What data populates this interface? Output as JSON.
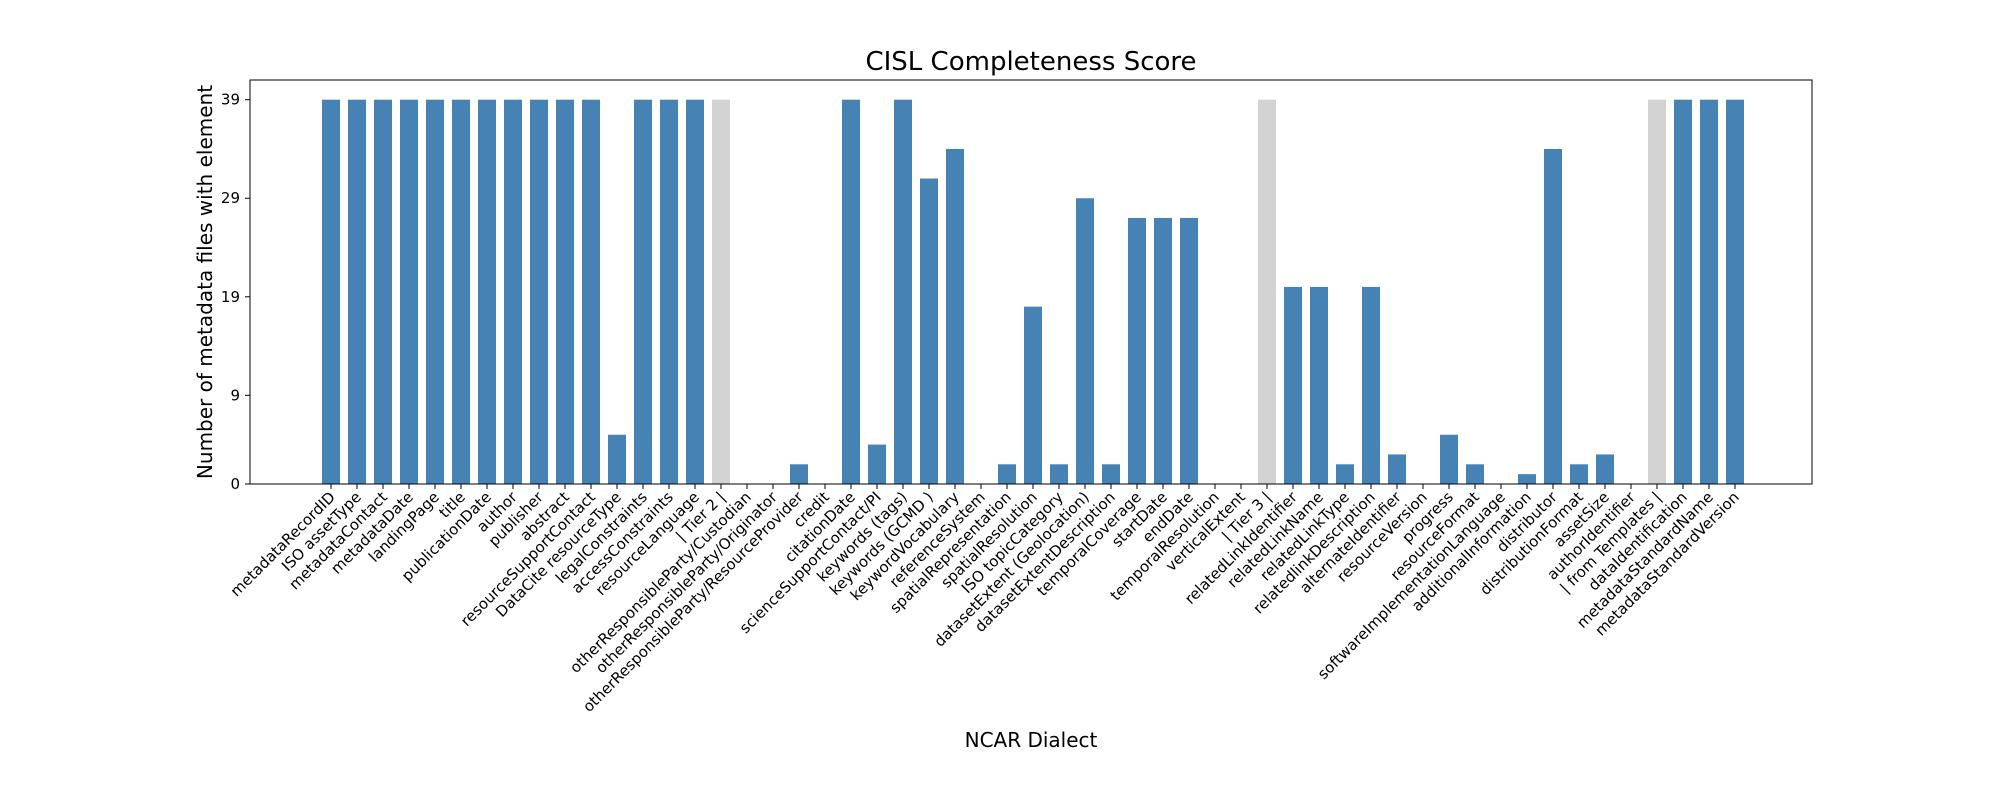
{
  "chart_data": {
    "type": "bar",
    "title": "CISL Completeness Score",
    "xlabel": "NCAR Dialect",
    "ylabel": "Number of metadata files with element",
    "ylim": [
      0,
      41
    ],
    "yticks": [
      0,
      9,
      19,
      29,
      39
    ],
    "grid": false,
    "legend": "none",
    "colors": {
      "bar": "#4682b4",
      "separator": "#d3d3d3"
    },
    "categories": [
      "metadataRecordID",
      "ISO assetType",
      "metadataContact",
      "metadataDate",
      "landingPage",
      "title",
      "publicationDate",
      "author",
      "publisher",
      "abstract",
      "resourceSupportContact",
      "DataCite resourceType",
      "legalConstraints",
      "accessConstraints",
      "resourceLanguage",
      "| Tier 2 |",
      "otherResponsibleParty/Custodian",
      "otherResponsibleParty/Originator",
      "otherResponsibleParty/ResourceProvider",
      "credit",
      "citationDate",
      "scienceSupportContact/PI",
      "keywords (tags)",
      "keywords (GCMD )",
      "keywordVocabulary",
      "referenceSystem",
      "spatialRepresentation",
      "spatialResolution",
      "ISO topicCategory",
      "datasetExtent (Geolocation)",
      "datasetExtentDescription",
      "temporalCoverage",
      "startDate",
      "endDate",
      "temporalResolution",
      "verticalExtent",
      "| Tier 3 |",
      "relatedLinkIdentifier",
      "relatedLinkName",
      "relatedLinkType",
      "relatedlinkDescription",
      "alternateIdentifier",
      "resourceVersion",
      "progress",
      "resourceFormat",
      "softwareImplementationLanguage",
      "additionalInformation",
      "distributor",
      "distributionFormat",
      "assetSize",
      "authorIdentifier",
      "| from Templates |",
      "dataIdentification",
      "metadataStandardName",
      "metadataStandardVersion"
    ],
    "values": [
      39,
      39,
      39,
      39,
      39,
      39,
      39,
      39,
      39,
      39,
      39,
      5,
      39,
      39,
      39,
      39,
      0,
      0,
      2,
      0,
      39,
      4,
      39,
      31,
      34,
      0,
      2,
      18,
      2,
      29,
      2,
      27,
      27,
      27,
      0,
      0,
      39,
      20,
      20,
      2,
      20,
      3,
      0,
      5,
      2,
      0,
      1,
      34,
      2,
      3,
      0,
      39,
      39,
      39,
      39
    ],
    "separator_categories": [
      "| Tier 2 |",
      "| Tier 3 |",
      "| from Templates |"
    ]
  }
}
